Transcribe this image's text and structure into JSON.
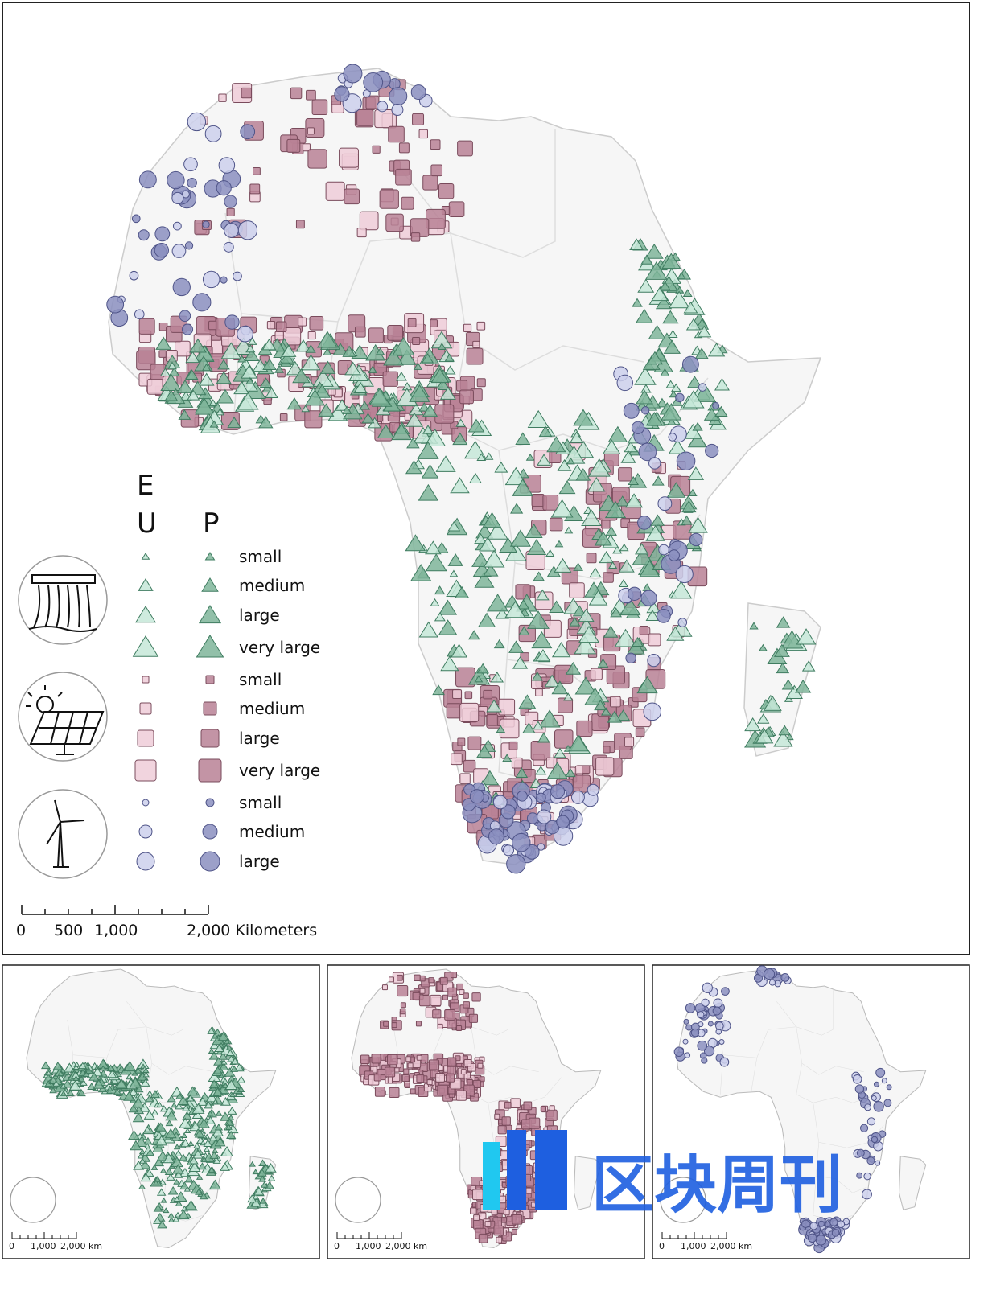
{
  "legend": {
    "eu": [
      "E",
      "U"
    ],
    "p": "P",
    "hydro": [
      "small",
      "medium",
      "large",
      "very large"
    ],
    "solar": [
      "small",
      "medium",
      "large",
      "very large"
    ],
    "wind": [
      "small",
      "medium",
      "large"
    ]
  },
  "scale_main": [
    "0",
    "500",
    "1,000",
    "2,000 Kilometers"
  ],
  "scale_panels": [
    [
      "0",
      "1,000",
      "2,000 km"
    ],
    [
      "0",
      "1,000",
      "2,000 km"
    ],
    [
      "0",
      "1,000",
      "2,000 km"
    ]
  ],
  "watermark": "区块周刊"
}
